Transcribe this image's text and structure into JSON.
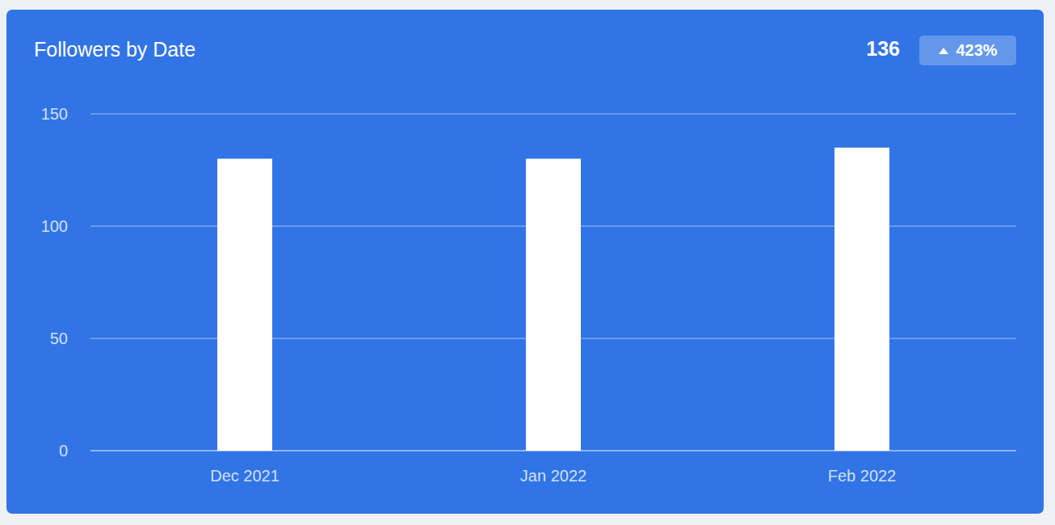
{
  "chart_data": {
    "type": "bar",
    "title": "Followers by Date",
    "annotations": [
      "136",
      "423%"
    ],
    "categories": [
      "Dec 2021",
      "Jan 2022",
      "Feb 2022"
    ],
    "values": [
      130,
      130,
      135
    ],
    "color": "#ffffff",
    "ylim": [
      0,
      150
    ],
    "yticks": [
      0,
      50,
      100,
      150
    ],
    "grid": true
  }
}
